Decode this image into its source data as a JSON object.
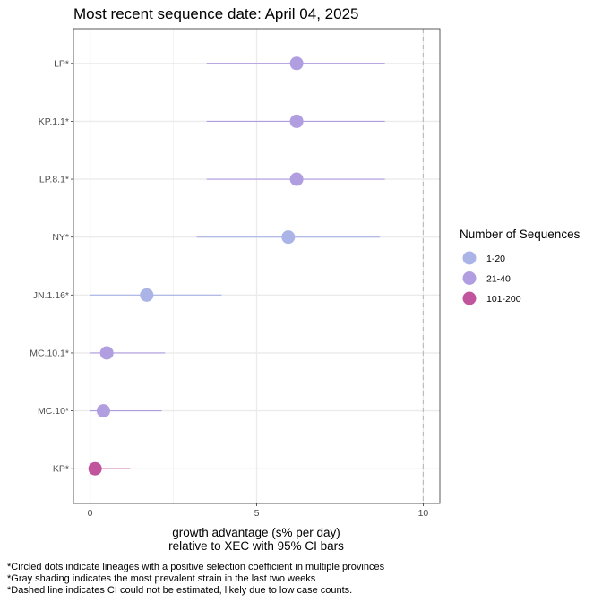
{
  "chart_data": {
    "type": "scatter",
    "title": "Most recent sequence date: April 04, 2025",
    "xlabel_line1": "growth advantage (s% per day)",
    "xlabel_line2": "relative to  XEC  with 95% CI bars",
    "xlim": [
      -0.5,
      10.5
    ],
    "x_ticks": [
      0,
      5,
      10
    ],
    "x_tick_labels": [
      "0",
      "5",
      "10"
    ],
    "dashed_reference_x": 10,
    "grid": true,
    "legend": {
      "title": "Number of Sequences",
      "placement": "right",
      "entries": [
        {
          "label": "1-20",
          "color": "#aab4e6"
        },
        {
          "label": "21-40",
          "color": "#b09ee0"
        },
        {
          "label": "101-200",
          "color": "#c0559e"
        }
      ]
    },
    "lineages": [
      {
        "label": "LP*",
        "estimate": 6.2,
        "ci_low": 3.5,
        "ci_high": 8.85,
        "group": "21-40"
      },
      {
        "label": "KP.1.1*",
        "estimate": 6.2,
        "ci_low": 3.5,
        "ci_high": 8.85,
        "group": "21-40"
      },
      {
        "label": "LP.8.1*",
        "estimate": 6.2,
        "ci_low": 3.5,
        "ci_high": 8.85,
        "group": "21-40"
      },
      {
        "label": "NY*",
        "estimate": 5.95,
        "ci_low": 3.2,
        "ci_high": 8.7,
        "group": "1-20"
      },
      {
        "label": "JN.1.16*",
        "estimate": 1.7,
        "ci_low": 0.0,
        "ci_high": 3.95,
        "group": "1-20"
      },
      {
        "label": "MC.10.1*",
        "estimate": 0.5,
        "ci_low": 0.0,
        "ci_high": 2.25,
        "group": "21-40"
      },
      {
        "label": "MC.10*",
        "estimate": 0.4,
        "ci_low": 0.0,
        "ci_high": 2.15,
        "group": "21-40"
      },
      {
        "label": "KP*",
        "estimate": 0.15,
        "ci_low": 0.0,
        "ci_high": 1.2,
        "group": "101-200"
      }
    ],
    "footnotes": [
      "*Circled dots indicate lineages with a positive selection coefficient in multiple provinces",
      "*Gray shading indicates the most prevalent strain in the last two weeks",
      "*Dashed line indicates CI could not be estimated, likely due to low case counts."
    ]
  }
}
